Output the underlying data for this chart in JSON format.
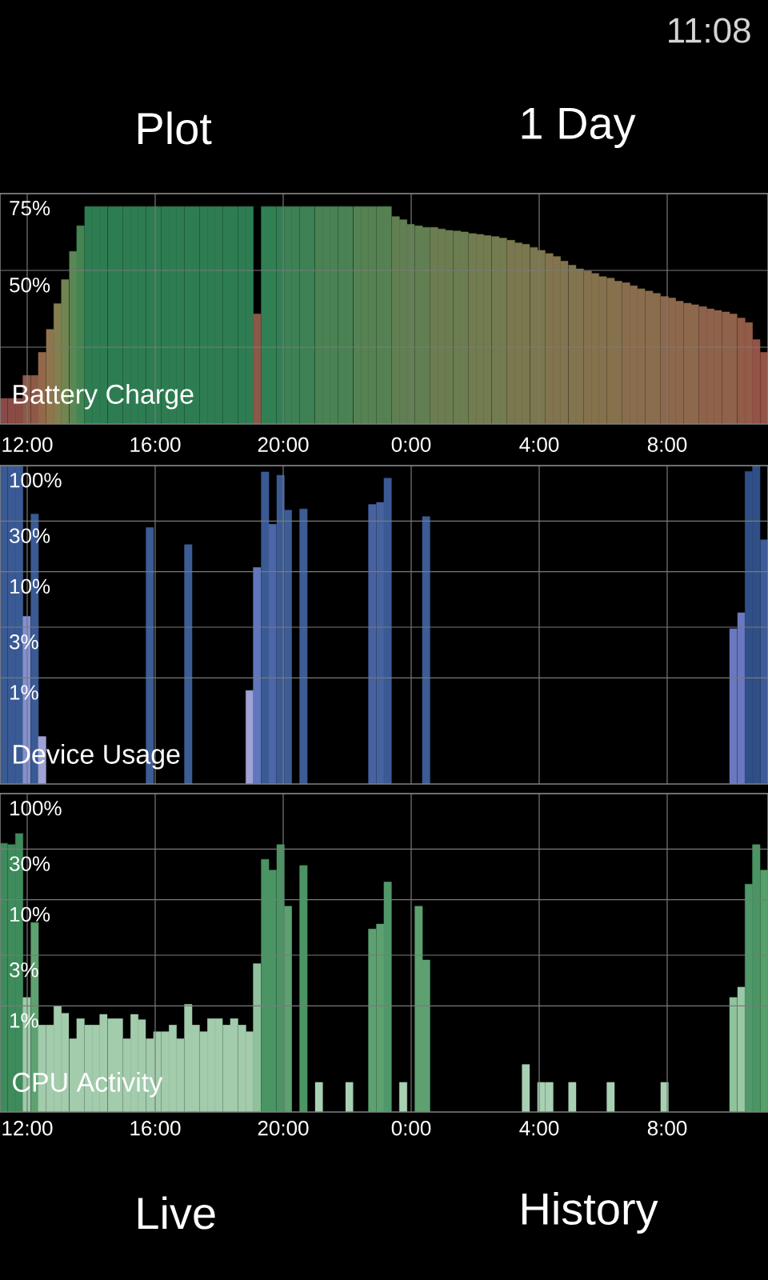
{
  "chart_data": [
    {
      "type": "other",
      "annotations": [
        "11:08",
        "Plot",
        "1 Day"
      ]
    },
    {
      "type": "bar",
      "title": "Battery Charge",
      "x": [
        "2000-01-01T11:16",
        "2000-01-01T11:31",
        "2000-01-01T11:45",
        "2000-01-01T11:59",
        "2000-01-01T12:14",
        "2000-01-01T12:28",
        "2000-01-01T12:43",
        "2000-01-01T12:57",
        "2000-01-01T13:11",
        "2000-01-01T13:26",
        "2000-01-01T13:40",
        "2000-01-01T13:55",
        "2000-01-01T14:09",
        "2000-01-01T14:23",
        "2000-01-01T14:38",
        "2000-01-01T14:52",
        "2000-01-01T15:07",
        "2000-01-01T15:21",
        "2000-01-01T15:35",
        "2000-01-01T15:50",
        "2000-01-01T16:04",
        "2000-01-01T16:19",
        "2000-01-01T16:33",
        "2000-01-01T16:47",
        "2000-01-01T17:02",
        "2000-01-01T17:16",
        "2000-01-01T17:31",
        "2000-01-01T17:45",
        "2000-01-01T17:59",
        "2000-01-01T18:14",
        "2000-01-01T18:28",
        "2000-01-01T18:43",
        "2000-01-01T18:57",
        "2000-01-01T19:11",
        "2000-01-01T19:26",
        "2000-01-01T19:40",
        "2000-01-01T19:55",
        "2000-01-01T20:09",
        "2000-01-01T20:23",
        "2000-01-01T20:38",
        "2000-01-01T20:52",
        "2000-01-01T21:07",
        "2000-01-01T21:21",
        "2000-01-01T21:35",
        "2000-01-01T21:50",
        "2000-01-01T22:04",
        "2000-01-01T22:19",
        "2000-01-01T22:33",
        "2000-01-01T22:47",
        "2000-01-01T23:02",
        "2000-01-01T23:16",
        "2000-01-01T23:31",
        "2000-01-01T23:45",
        "2000-01-01T23:59",
        "2000-01-02T00:14",
        "2000-01-02T00:28",
        "2000-01-02T00:43",
        "2000-01-02T00:57",
        "2000-01-02T01:11",
        "2000-01-02T01:26",
        "2000-01-02T01:40",
        "2000-01-02T01:55",
        "2000-01-02T02:09",
        "2000-01-02T02:23",
        "2000-01-02T02:38",
        "2000-01-02T02:52",
        "2000-01-02T03:07",
        "2000-01-02T03:21",
        "2000-01-02T03:35",
        "2000-01-02T03:50",
        "2000-01-02T04:04",
        "2000-01-02T04:19",
        "2000-01-02T04:33",
        "2000-01-02T04:47",
        "2000-01-02T05:02",
        "2000-01-02T05:16",
        "2000-01-02T05:31",
        "2000-01-02T05:45",
        "2000-01-02T05:59",
        "2000-01-02T06:14",
        "2000-01-02T06:28",
        "2000-01-02T06:43",
        "2000-01-02T06:57",
        "2000-01-02T07:11",
        "2000-01-02T07:26",
        "2000-01-02T07:40",
        "2000-01-02T07:55",
        "2000-01-02T08:09",
        "2000-01-02T08:23",
        "2000-01-02T08:38",
        "2000-01-02T08:52",
        "2000-01-02T09:07",
        "2000-01-02T09:21",
        "2000-01-02T09:35",
        "2000-01-02T09:50",
        "2000-01-02T10:04",
        "2000-01-02T10:19",
        "2000-01-02T10:33",
        "2000-01-02T10:47",
        "2000-01-02T11:02"
      ],
      "values": [
        8.3,
        8.3,
        8.3,
        15.8,
        15.8,
        23.3,
        30.8,
        39.2,
        47,
        56.2,
        64.5,
        70.8,
        70.8,
        70.8,
        70.8,
        70.8,
        70.8,
        70.8,
        70.8,
        70.8,
        70.8,
        70.8,
        70.8,
        70.8,
        70.8,
        70.8,
        70.8,
        70.8,
        70.8,
        70.8,
        70.8,
        70.8,
        70.8,
        35.8,
        70.8,
        70.8,
        70.8,
        70.8,
        70.8,
        70.8,
        70.8,
        70.8,
        70.8,
        70.8,
        70.8,
        70.8,
        70.8,
        70.8,
        70.8,
        70.8,
        70.8,
        67.5,
        66.5,
        65,
        64.5,
        64,
        64,
        63.5,
        63,
        62.8,
        62.5,
        62,
        61.7,
        61.3,
        61,
        60.5,
        59.8,
        59,
        58.5,
        57.5,
        56.5,
        55.5,
        54.5,
        53,
        51.7,
        50.5,
        49.8,
        49,
        48,
        47.5,
        46.5,
        46,
        45,
        44,
        43.3,
        42.5,
        41.5,
        41,
        40,
        39.3,
        38.8,
        38.2,
        37.5,
        37,
        36.5,
        35.8,
        34.5,
        33,
        27.5,
        23.3
      ],
      "colors": [
        "#8a4a45",
        "#8a4a45",
        "#8a4a45",
        "#8e5a48",
        "#8e5a48",
        "#93684b",
        "#8f754e",
        "#857e51",
        "#718552",
        "#5a8753",
        "#448653",
        "#2e7d52",
        "#2e7d52",
        "#2e7d52",
        "#2e7d52",
        "#2e7d52",
        "#2e7d52",
        "#2e7d52",
        "#2e7d52",
        "#2e7d52",
        "#2e7d52",
        "#2e7d52",
        "#2e7d52",
        "#2e7d52",
        "#2e7d52",
        "#2e7d52",
        "#2e7d52",
        "#2e7d52",
        "#2e7d52",
        "#2e7d52",
        "#2e7d52",
        "#2e7d52",
        "#2e7d52",
        "#8c5848",
        "#318054",
        "#318054",
        "#318054",
        "#3d8154",
        "#3d8154",
        "#3d8154",
        "#3d8154",
        "#4a8254",
        "#4a8254",
        "#4a8254",
        "#4a8254",
        "#4a8254",
        "#568253",
        "#568253",
        "#568253",
        "#568253",
        "#568253",
        "#617f52",
        "#617f52",
        "#617f52",
        "#617f52",
        "#617f52",
        "#6b7d51",
        "#6b7d51",
        "#6b7d51",
        "#6b7d51",
        "#6b7d51",
        "#737b50",
        "#737b50",
        "#737b50",
        "#737b50",
        "#737b50",
        "#7b784f",
        "#7b784f",
        "#7b784f",
        "#7b784f",
        "#7b784f",
        "#81744e",
        "#81744e",
        "#81744e",
        "#81744e",
        "#81744e",
        "#86714d",
        "#86714d",
        "#86714d",
        "#86714d",
        "#86714d",
        "#8a6d4d",
        "#8a6d4d",
        "#8a6d4d",
        "#8a6d4d",
        "#8a6d4d",
        "#8d684c",
        "#8d684c",
        "#8d684c",
        "#8d684c",
        "#8d684c",
        "#8f634b",
        "#8f634b",
        "#8f634b",
        "#8f634b",
        "#8f634b",
        "#925c49",
        "#925c49",
        "#945347",
        "#945347"
      ],
      "xlim": [
        "2000-01-01T11:09",
        "2000-01-02T11:09"
      ],
      "xticks": [
        {
          "value": "2000-01-01T12:00",
          "label": "12:00"
        },
        {
          "value": "2000-01-01T16:00",
          "label": "16:00"
        },
        {
          "value": "2000-01-01T20:00",
          "label": "20:00"
        },
        {
          "value": "2000-01-02T00:00",
          "label": "0:00"
        },
        {
          "value": "2000-01-02T04:00",
          "label": "4:00"
        },
        {
          "value": "2000-01-02T08:00",
          "label": "8:00"
        }
      ],
      "ylim": [
        0,
        75
      ],
      "yticks": [
        {
          "value": 25,
          "label": null
        },
        {
          "value": 50,
          "label": "50%"
        },
        {
          "value": 75,
          "label": "75%"
        }
      ],
      "grid": true
    },
    {
      "type": "bar",
      "title": "Device Usage",
      "x": [
        "2000-01-01T11:16",
        "2000-01-01T11:31",
        "2000-01-01T11:45",
        "2000-01-01T11:59",
        "2000-01-01T12:14",
        "2000-01-01T12:28",
        "2000-01-01T15:50",
        "2000-01-01T17:02",
        "2000-01-01T18:57",
        "2000-01-01T19:11",
        "2000-01-01T19:26",
        "2000-01-01T19:40",
        "2000-01-01T19:55",
        "2000-01-01T20:09",
        "2000-01-01T20:38",
        "2000-01-01T22:47",
        "2000-01-01T23:02",
        "2000-01-01T23:16",
        "2000-01-02T00:28",
        "2000-01-02T10:04",
        "2000-01-02T10:19",
        "2000-01-02T10:33",
        "2000-01-02T10:47",
        "2000-01-02T11:02"
      ],
      "values": [
        100,
        100,
        100,
        3.8,
        35,
        0.28,
        26,
        18,
        0.76,
        11,
        87,
        28,
        81,
        38,
        39,
        43,
        45,
        76,
        33,
        2.9,
        4.1,
        88,
        100,
        20
      ],
      "colors": [
        "#3a5a94",
        "#3a5a94",
        "#3a5a94",
        "#8390d0",
        "#3a5a94",
        "#a0a2d6",
        "#3c5c96",
        "#3c5c96",
        "#a0a2d6",
        "#6276bd",
        "#3a5a94",
        "#4d66a8",
        "#3a5a94",
        "#3c5c96",
        "#3c5c96",
        "#46629f",
        "#46629f",
        "#3a5a94",
        "#3c5c96",
        "#6a78c0",
        "#6a78c0",
        "#2f4f86",
        "#2f4f86",
        "#3d5c98"
      ],
      "xlim": [
        "2000-01-01T11:09",
        "2000-01-02T11:09"
      ],
      "xticks": [
        {
          "value": "2000-01-01T12:00",
          "label": null
        },
        {
          "value": "2000-01-01T16:00",
          "label": null
        },
        {
          "value": "2000-01-01T20:00",
          "label": null
        },
        {
          "value": "2000-01-02T00:00",
          "label": null
        },
        {
          "value": "2000-01-02T04:00",
          "label": null
        },
        {
          "value": "2000-01-02T08:00",
          "label": null
        }
      ],
      "ylim": [
        0.1,
        100
      ],
      "yticks": [
        {
          "value": 1,
          "label": "1%"
        },
        {
          "value": 3,
          "label": "3%"
        },
        {
          "value": 10,
          "label": "10%"
        },
        {
          "value": 30,
          "label": "30%"
        },
        {
          "value": 100,
          "label": "100%"
        }
      ],
      "log": true,
      "grid": true,
      "tick_labels": "y"
    },
    {
      "type": "bar",
      "title": "CPU Activity",
      "x": [
        "2000-01-01T11:16",
        "2000-01-01T11:31",
        "2000-01-01T11:45",
        "2000-01-01T11:59",
        "2000-01-01T12:14",
        "2000-01-01T12:28",
        "2000-01-01T12:43",
        "2000-01-01T12:57",
        "2000-01-01T13:11",
        "2000-01-01T13:26",
        "2000-01-01T13:40",
        "2000-01-01T13:55",
        "2000-01-01T14:09",
        "2000-01-01T14:23",
        "2000-01-01T14:38",
        "2000-01-01T14:52",
        "2000-01-01T15:07",
        "2000-01-01T15:21",
        "2000-01-01T15:35",
        "2000-01-01T15:50",
        "2000-01-01T16:04",
        "2000-01-01T16:19",
        "2000-01-01T16:33",
        "2000-01-01T16:47",
        "2000-01-01T17:02",
        "2000-01-01T17:16",
        "2000-01-01T17:31",
        "2000-01-01T17:45",
        "2000-01-01T17:59",
        "2000-01-01T18:14",
        "2000-01-01T18:28",
        "2000-01-01T18:43",
        "2000-01-01T18:57",
        "2000-01-01T19:11",
        "2000-01-01T19:26",
        "2000-01-01T19:40",
        "2000-01-01T19:55",
        "2000-01-01T20:09",
        "2000-01-01T20:38",
        "2000-01-01T21:07",
        "2000-01-01T22:04",
        "2000-01-01T22:47",
        "2000-01-01T23:02",
        "2000-01-01T23:16",
        "2000-01-01T23:45",
        "2000-01-02T00:14",
        "2000-01-02T00:28",
        "2000-01-02T03:35",
        "2000-01-02T04:04",
        "2000-01-02T04:19",
        "2000-01-02T05:02",
        "2000-01-02T06:14",
        "2000-01-02T07:55",
        "2000-01-02T10:04",
        "2000-01-02T10:19",
        "2000-01-02T10:33",
        "2000-01-02T10:47",
        "2000-01-02T11:02"
      ],
      "values": [
        34,
        33,
        42,
        1.2,
        6.1,
        0.66,
        0.66,
        1.0,
        0.85,
        0.49,
        0.76,
        0.66,
        0.66,
        0.83,
        0.76,
        0.76,
        0.49,
        0.83,
        0.74,
        0.49,
        0.57,
        0.57,
        0.66,
        0.49,
        1.03,
        0.66,
        0.57,
        0.76,
        0.76,
        0.66,
        0.76,
        0.66,
        0.57,
        2.5,
        24,
        19,
        33,
        8.7,
        21,
        0.19,
        0.19,
        5.3,
        5.9,
        14.7,
        0.19,
        8.7,
        2.7,
        0.28,
        0.19,
        0.19,
        0.19,
        0.19,
        0.19,
        1.2,
        1.5,
        14,
        33,
        19
      ],
      "colors": [
        "#3e8b5c",
        "#3e8b5c",
        "#3e8b5c",
        "#9dcaa8",
        "#5fa272",
        "#a2ccac",
        "#a2ccac",
        "#a2ccac",
        "#a2ccac",
        "#a2ccac",
        "#a2ccac",
        "#a2ccac",
        "#a2ccac",
        "#a2ccac",
        "#a2ccac",
        "#a2ccac",
        "#a2ccac",
        "#a2ccac",
        "#a2ccac",
        "#a2ccac",
        "#a2ccac",
        "#a2ccac",
        "#a2ccac",
        "#a2ccac",
        "#a2ccac",
        "#a2ccac",
        "#a2ccac",
        "#a2ccac",
        "#a2ccac",
        "#a2ccac",
        "#a2ccac",
        "#a2ccac",
        "#a2ccac",
        "#8fc19c",
        "#4b9464",
        "#4b9464",
        "#4b9464",
        "#5da171",
        "#4b9464",
        "#a8d0b2",
        "#a8d0b2",
        "#5da171",
        "#5da171",
        "#50986a",
        "#a8d0b2",
        "#5da171",
        "#5da171",
        "#a8d0b2",
        "#a8d0b2",
        "#a8d0b2",
        "#a8d0b2",
        "#a8d0b2",
        "#a8d0b2",
        "#8ec39b",
        "#9ac8a6",
        "#50986a",
        "#4b9464",
        "#55a06b"
      ],
      "xlim": [
        "2000-01-01T11:09",
        "2000-01-02T11:09"
      ],
      "xticks": [
        {
          "value": "2000-01-01T12:00",
          "label": "12:00"
        },
        {
          "value": "2000-01-01T16:00",
          "label": "16:00"
        },
        {
          "value": "2000-01-01T20:00",
          "label": "20:00"
        },
        {
          "value": "2000-01-02T00:00",
          "label": "0:00"
        },
        {
          "value": "2000-01-02T04:00",
          "label": "4:00"
        },
        {
          "value": "2000-01-02T08:00",
          "label": "8:00"
        }
      ],
      "ylim": [
        0.1,
        100
      ],
      "yticks": [
        {
          "value": 1,
          "label": "1%"
        },
        {
          "value": 3,
          "label": "3%"
        },
        {
          "value": 10,
          "label": "10%"
        },
        {
          "value": 30,
          "label": "30%"
        },
        {
          "value": 100,
          "label": "100%"
        }
      ],
      "log": true,
      "grid": true
    },
    {
      "type": "other",
      "annotations": [
        "Live",
        "History"
      ]
    }
  ]
}
